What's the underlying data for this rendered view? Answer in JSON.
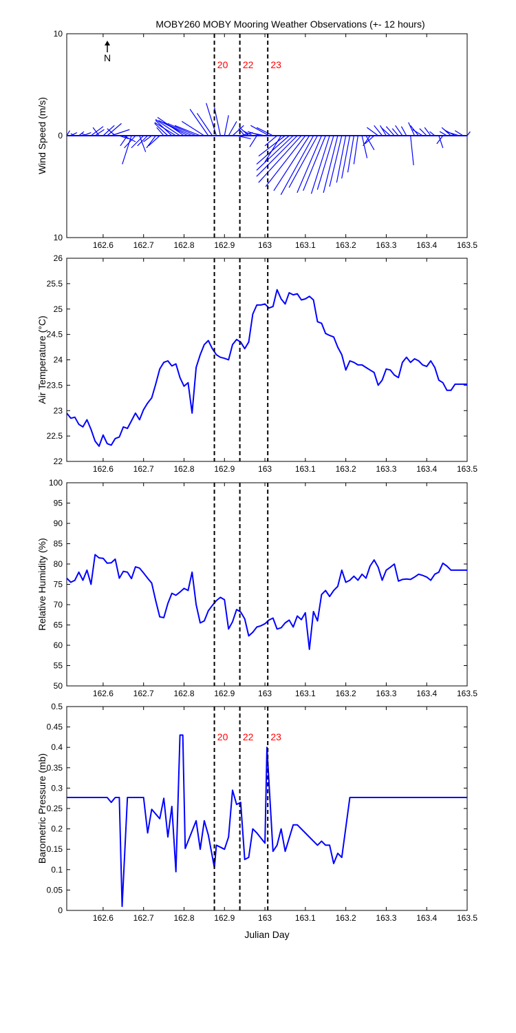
{
  "title": "MOBY260 MOBY Mooring Weather Observations (+- 12 hours)",
  "colors": {
    "series": "#0000ff",
    "event_label": "#ff0000",
    "axis": "#000000",
    "event_line": "#000000"
  },
  "chart_data": [
    {
      "type": "line",
      "subtype": "wind-vector-sticks",
      "ylabel": "Wind Speed (m/s)",
      "xlim": [
        162.51,
        163.5
      ],
      "ylim": [
        -10,
        10
      ],
      "yticks": [
        10,
        0,
        10
      ],
      "xticks": [
        162.6,
        162.7,
        162.8,
        162.9,
        163,
        163.1,
        163.2,
        163.3,
        163.4,
        163.5
      ],
      "north_arrow_label": "N",
      "event_lines": [
        162.875,
        162.938,
        163.007
      ],
      "event_labels": [
        "20",
        "22",
        "23"
      ],
      "x": [
        162.51,
        162.52,
        162.53,
        162.54,
        162.55,
        162.56,
        162.57,
        162.58,
        162.59,
        162.6,
        162.61,
        162.62,
        162.63,
        162.64,
        162.65,
        162.66,
        162.67,
        162.68,
        162.69,
        162.7,
        162.71,
        162.72,
        162.73,
        162.74,
        162.75,
        162.76,
        162.77,
        162.78,
        162.79,
        162.8,
        162.81,
        162.82,
        162.83,
        162.84,
        162.85,
        162.86,
        162.87,
        162.88,
        162.89,
        162.9,
        162.91,
        162.92,
        162.93,
        162.94,
        162.95,
        162.96,
        162.97,
        162.98,
        162.99,
        163,
        163.01,
        163.02,
        163.03,
        163.04,
        163.05,
        163.06,
        163.07,
        163.08,
        163.09,
        163.1,
        163.11,
        163.12,
        163.13,
        163.14,
        163.15,
        163.16,
        163.17,
        163.18,
        163.19,
        163.2,
        163.21,
        163.22,
        163.23,
        163.24,
        163.25,
        163.26,
        163.27,
        163.28,
        163.29,
        163.3,
        163.31,
        163.32,
        163.33,
        163.34,
        163.35,
        163.36,
        163.37,
        163.38,
        163.39,
        163.4,
        163.41,
        163.42,
        163.43,
        163.44,
        163.45,
        163.46,
        163.47,
        163.48,
        163.49,
        163.5
      ],
      "u": [
        0.3,
        0.6,
        -0.4,
        0.5,
        0.8,
        -0.5,
        1.2,
        0.9,
        -0.6,
        1.1,
        1.4,
        1.8,
        -0.8,
        0.9,
        1.2,
        -0.7,
        -0.9,
        -1.1,
        0.6,
        -1.2,
        -1.0,
        -0.8,
        -0.9,
        -1.1,
        -0.7,
        -1.3,
        -1.6,
        -2.1,
        -2.4,
        -2.6,
        -2.9,
        -3.1,
        -2.8,
        -2.5,
        -2.2,
        -1.8,
        -1.5,
        -1.0,
        -0.6,
        0.4,
        0.8,
        1.1,
        1.4,
        1.2,
        -0.6,
        -0.9,
        -1.0,
        -0.7,
        -1.3,
        -1.5,
        -1.8,
        -1.6,
        -1.2,
        -1.6,
        -2.6,
        -3.2,
        -3.6,
        -4.0,
        -4.2,
        -3.9,
        -3.5,
        -3.2,
        -2.8,
        -2.4,
        -2.2,
        -1.8,
        -1.6,
        -1.4,
        -1.2,
        -0.9,
        -0.8,
        -0.6,
        -0.4,
        0.5,
        0.8,
        -0.7,
        -0.9,
        -1.1,
        -0.8,
        -0.6,
        -0.9,
        -0.8,
        -0.6,
        -0.7,
        -0.5,
        0.3,
        -0.6,
        -0.8,
        -1.0,
        -0.7,
        -0.6,
        -0.5,
        0.4,
        -0.6,
        -0.7,
        -0.9,
        -1.1,
        -1.3,
        -0.8,
        0.3
      ],
      "v": [
        0.5,
        0.3,
        0.2,
        0.4,
        0.3,
        0.2,
        0.9,
        0.6,
        0.8,
        1.0,
        1.2,
        0.6,
        0.7,
        -0.3,
        -0.6,
        -1.0,
        -2.8,
        -1.2,
        -1.6,
        -1.2,
        -1.0,
        -0.6,
        -1.2,
        -1.0,
        0.8,
        1.2,
        1.5,
        1.3,
        1.6,
        1.8,
        1.5,
        1.4,
        1.2,
        1.0,
        1.4,
        2.6,
        2.2,
        3.2,
        2.8,
        2.0,
        1.4,
        1.0,
        -0.3,
        0.3,
        0.7,
        0.8,
        0.5,
        -1.1,
        0.4,
        0.3,
        1.0,
        0.8,
        -1.0,
        -2.6,
        -2.0,
        -2.8,
        -3.4,
        -4.0,
        -4.6,
        -5.0,
        -5.4,
        -5.8,
        -5.1,
        -5.6,
        -5.4,
        -5.7,
        -5.3,
        -5.6,
        -5.0,
        -4.6,
        -4.2,
        -3.6,
        -2.8,
        -2.2,
        -1.4,
        -1.0,
        -0.8,
        0.8,
        1.0,
        1.0,
        0.8,
        0.9,
        0.7,
        1.0,
        0.9,
        -2.9,
        1.3,
        1.0,
        0.6,
        0.7,
        0.8,
        0.4,
        -1.2,
        -0.8,
        0.4,
        0.8,
        0.6,
        0.4,
        0.5,
        0.4
      ]
    },
    {
      "type": "line",
      "ylabel": "Air Temperature (°C)",
      "xlim": [
        162.51,
        163.5
      ],
      "ylim": [
        22,
        26
      ],
      "yticks": [
        22,
        22.5,
        23,
        23.5,
        24,
        24.5,
        25,
        25.5,
        26
      ],
      "xticks": [
        162.6,
        162.7,
        162.8,
        162.9,
        163,
        163.1,
        163.2,
        163.3,
        163.4,
        163.5
      ],
      "event_lines": [
        162.875,
        162.938,
        163.007
      ],
      "x": [
        162.51,
        162.52,
        162.53,
        162.54,
        162.55,
        162.56,
        162.57,
        162.58,
        162.59,
        162.6,
        162.61,
        162.62,
        162.63,
        162.64,
        162.65,
        162.66,
        162.67,
        162.68,
        162.69,
        162.7,
        162.71,
        162.72,
        162.73,
        162.74,
        162.75,
        162.76,
        162.77,
        162.78,
        162.79,
        162.8,
        162.81,
        162.82,
        162.83,
        162.84,
        162.85,
        162.86,
        162.87,
        162.88,
        162.89,
        162.9,
        162.91,
        162.92,
        162.93,
        162.94,
        162.95,
        162.96,
        162.97,
        162.98,
        162.99,
        163,
        163.01,
        163.02,
        163.03,
        163.04,
        163.05,
        163.06,
        163.07,
        163.08,
        163.09,
        163.1,
        163.11,
        163.12,
        163.13,
        163.14,
        163.15,
        163.16,
        163.17,
        163.18,
        163.19,
        163.2,
        163.21,
        163.22,
        163.23,
        163.24,
        163.25,
        163.26,
        163.27,
        163.28,
        163.29,
        163.3,
        163.31,
        163.32,
        163.33,
        163.34,
        163.35,
        163.36,
        163.37,
        163.38,
        163.39,
        163.4,
        163.41,
        163.42,
        163.43,
        163.44,
        163.45,
        163.46,
        163.47,
        163.48,
        163.49,
        163.5
      ],
      "y": [
        22.95,
        22.85,
        22.87,
        22.73,
        22.68,
        22.82,
        22.63,
        22.4,
        22.3,
        22.52,
        22.35,
        22.32,
        22.45,
        22.48,
        22.68,
        22.65,
        22.8,
        22.95,
        22.82,
        23.02,
        23.15,
        23.25,
        23.52,
        23.82,
        23.95,
        23.98,
        23.88,
        23.92,
        23.65,
        23.48,
        23.55,
        22.95,
        23.85,
        24.1,
        24.3,
        24.38,
        24.22,
        24.1,
        24.05,
        24.03,
        24.0,
        24.3,
        24.4,
        24.35,
        24.22,
        24.35,
        24.9,
        25.08,
        25.08,
        25.1,
        25.02,
        25.05,
        25.38,
        25.2,
        25.1,
        25.32,
        25.28,
        25.3,
        25.18,
        25.2,
        25.25,
        25.18,
        24.75,
        24.72,
        24.52,
        24.48,
        24.45,
        24.25,
        24.1,
        23.8,
        23.98,
        23.95,
        23.9,
        23.9,
        23.85,
        23.8,
        23.75,
        23.5,
        23.6,
        23.82,
        23.8,
        23.7,
        23.65,
        23.95,
        24.05,
        23.95,
        24.02,
        23.98,
        23.9,
        23.87,
        23.98,
        23.85,
        23.6,
        23.55,
        23.4,
        23.4,
        23.52,
        23.52,
        23.52,
        23.52
      ]
    },
    {
      "type": "line",
      "ylabel": "Relative Humidity (%)",
      "xlim": [
        162.51,
        163.5
      ],
      "ylim": [
        50,
        100
      ],
      "yticks": [
        50,
        55,
        60,
        65,
        70,
        75,
        80,
        85,
        90,
        95,
        100
      ],
      "xticks": [
        162.6,
        162.7,
        162.8,
        162.9,
        163,
        163.1,
        163.2,
        163.3,
        163.4,
        163.5
      ],
      "event_lines": [
        162.875,
        162.938,
        163.007
      ],
      "x": [
        162.51,
        162.52,
        162.53,
        162.54,
        162.55,
        162.56,
        162.57,
        162.58,
        162.59,
        162.6,
        162.61,
        162.62,
        162.63,
        162.64,
        162.65,
        162.66,
        162.67,
        162.68,
        162.69,
        162.7,
        162.71,
        162.72,
        162.73,
        162.74,
        162.75,
        162.76,
        162.77,
        162.78,
        162.79,
        162.8,
        162.81,
        162.82,
        162.83,
        162.84,
        162.85,
        162.86,
        162.87,
        162.88,
        162.89,
        162.9,
        162.91,
        162.92,
        162.93,
        162.94,
        162.95,
        162.96,
        162.97,
        162.98,
        162.99,
        163,
        163.01,
        163.02,
        163.03,
        163.04,
        163.05,
        163.06,
        163.07,
        163.08,
        163.09,
        163.1,
        163.11,
        163.12,
        163.13,
        163.14,
        163.15,
        163.16,
        163.17,
        163.18,
        163.19,
        163.2,
        163.21,
        163.22,
        163.23,
        163.24,
        163.25,
        163.26,
        163.27,
        163.28,
        163.29,
        163.3,
        163.31,
        163.32,
        163.33,
        163.34,
        163.35,
        163.36,
        163.37,
        163.38,
        163.39,
        163.4,
        163.41,
        163.42,
        163.43,
        163.44,
        163.45,
        163.46,
        163.47,
        163.48,
        163.49,
        163.5
      ],
      "y": [
        76.5,
        75.5,
        76,
        78,
        76,
        78.5,
        75,
        82.3,
        81.5,
        81.4,
        80.2,
        80.3,
        81.2,
        76.5,
        78.2,
        78,
        76.4,
        79.3,
        79,
        77.8,
        76.5,
        75.3,
        71,
        67,
        66.8,
        70.3,
        72.8,
        72.3,
        73.1,
        74,
        73.5,
        78,
        70,
        65.5,
        66,
        68.5,
        69.8,
        71,
        71.8,
        71.2,
        64,
        65.8,
        68.8,
        68.2,
        66.5,
        62.3,
        63.2,
        64.5,
        64.8,
        65.3,
        66.2,
        66.7,
        64,
        64.3,
        65.5,
        66.2,
        64.5,
        67.2,
        66.3,
        68,
        59,
        68.3,
        66,
        72.5,
        73.5,
        72,
        73.5,
        74.5,
        78.5,
        75.5,
        76,
        77,
        76,
        77.5,
        76.5,
        79.5,
        81,
        79.2,
        76,
        78.5,
        79.2,
        80,
        75.8,
        76.2,
        76.3,
        76.2,
        76.8,
        77.5,
        77.2,
        76.8,
        76,
        77.5,
        78,
        80.2,
        79.5,
        78.5,
        78.5,
        78.5,
        78.5,
        78.5
      ]
    },
    {
      "type": "line",
      "ylabel": "Barometric Pressure (mb)",
      "xlabel": "Julian Day",
      "xlim": [
        162.51,
        163.5
      ],
      "ylim": [
        0,
        0.5
      ],
      "yticks": [
        0,
        0.05,
        0.1,
        0.15,
        0.2,
        0.25,
        0.3,
        0.35,
        0.4,
        0.45,
        0.5
      ],
      "xticks": [
        162.6,
        162.7,
        162.8,
        162.9,
        163,
        163.1,
        163.2,
        163.3,
        163.4,
        163.5
      ],
      "event_lines": [
        162.875,
        162.938,
        163.007
      ],
      "event_labels": [
        "20",
        "22",
        "23"
      ],
      "x": [
        162.51,
        162.61,
        162.62,
        162.63,
        162.64,
        162.647,
        162.66,
        162.7,
        162.71,
        162.72,
        162.74,
        162.75,
        162.76,
        162.77,
        162.78,
        162.79,
        162.797,
        162.803,
        162.81,
        162.83,
        162.84,
        162.85,
        162.86,
        162.875,
        162.88,
        162.89,
        162.9,
        162.91,
        162.92,
        162.93,
        162.94,
        162.95,
        162.96,
        162.97,
        162.98,
        163.0,
        163.005,
        163.02,
        163.03,
        163.04,
        163.05,
        163.07,
        163.08,
        163.1,
        163.12,
        163.13,
        163.14,
        163.15,
        163.16,
        163.17,
        163.18,
        163.19,
        163.21,
        163.5
      ],
      "y": [
        0.277,
        0.277,
        0.265,
        0.277,
        0.277,
        0.01,
        0.277,
        0.277,
        0.19,
        0.248,
        0.225,
        0.275,
        0.18,
        0.255,
        0.095,
        0.43,
        0.43,
        0.152,
        0.17,
        0.22,
        0.15,
        0.22,
        0.185,
        0.105,
        0.16,
        0.155,
        0.15,
        0.18,
        0.295,
        0.26,
        0.265,
        0.125,
        0.13,
        0.2,
        0.19,
        0.165,
        0.4,
        0.145,
        0.16,
        0.2,
        0.145,
        0.21,
        0.21,
        0.19,
        0.17,
        0.16,
        0.17,
        0.16,
        0.16,
        0.115,
        0.14,
        0.13,
        0.277,
        0.277
      ]
    }
  ]
}
